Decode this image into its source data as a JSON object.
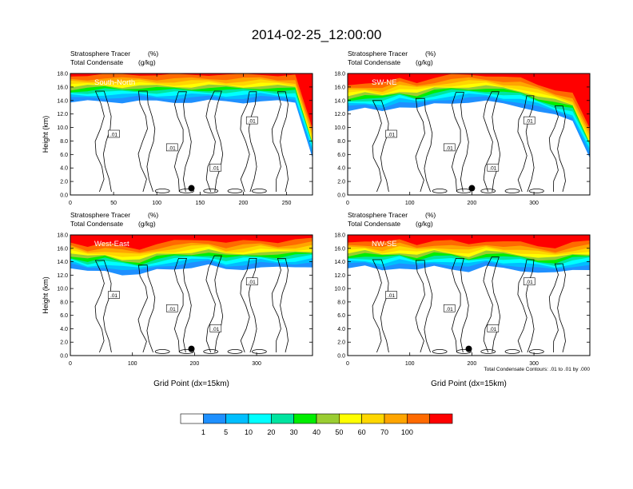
{
  "figure": {
    "title": "2014-02-25_12:00:00",
    "contour_note": "Total Condensate Contours: .01 to .01 by .000"
  },
  "colorbar": {
    "labels": [
      "1",
      "5",
      "10",
      "20",
      "30",
      "40",
      "50",
      "60",
      "70",
      "100"
    ],
    "colors": [
      "#ffffff",
      "#1e90ff",
      "#00bfff",
      "#00ffff",
      "#00e4a0",
      "#00ee00",
      "#9acd32",
      "#ffff00",
      "#ffd700",
      "#ffa500",
      "#ff6a00",
      "#ff0000"
    ]
  },
  "chart_data": [
    {
      "type": "heatmap",
      "region": "South-North",
      "left_title": "Stratosphere Tracer",
      "left_subtitle": "Total Condensate",
      "unit": "(%)",
      "unit2": "(g/kg)",
      "ylabel": "Height (km)",
      "xlabel": "",
      "xlim": [
        0,
        280
      ],
      "ylim": [
        0,
        18
      ],
      "xticks": [
        0,
        50,
        100,
        150,
        200,
        250
      ],
      "yticks": [
        "0.0",
        "2.0",
        "4.0",
        "6.0",
        "8.0",
        "10.0",
        "12.0",
        "14.0",
        "16.0",
        "18.0"
      ],
      "contour_value": ".01",
      "tropopause_km": [
        15.5,
        15.6,
        15.7,
        15.6,
        15.7,
        15.6,
        15.6,
        15.6,
        15.7,
        15.6,
        15.6,
        15.7,
        15.6,
        15.5,
        7.5
      ],
      "marker_x": 140
    },
    {
      "type": "heatmap",
      "region": "SW-NE",
      "left_title": "Stratosphere Tracer",
      "left_subtitle": "Total Condensate",
      "unit": "(%)",
      "unit2": "(g/kg)",
      "ylabel": "",
      "xlabel": "",
      "xlim": [
        0,
        390
      ],
      "ylim": [
        0,
        18
      ],
      "xticks": [
        0,
        100,
        200,
        300
      ],
      "yticks": [
        "0.0",
        "2.0",
        "4.0",
        "6.0",
        "8.0",
        "10.0",
        "12.0",
        "14.0",
        "16.0",
        "18.0"
      ],
      "contour_value": ".01",
      "tropopause_km": [
        14.2,
        14.5,
        14.3,
        15.0,
        14.6,
        15.2,
        15.5,
        15.6,
        15.6,
        15.3,
        15.0,
        14.2,
        13.5,
        12.8,
        7.5
      ],
      "marker_x": 200
    },
    {
      "type": "heatmap",
      "region": "West-East",
      "left_title": "Stratosphere Tracer",
      "left_subtitle": "Total Condensate",
      "unit": "(%)",
      "unit2": "(g/kg)",
      "ylabel": "Height (km)",
      "xlabel": "Grid Point (dx=15km)",
      "xlim": [
        0,
        390
      ],
      "ylim": [
        0,
        18
      ],
      "xticks": [
        0,
        100,
        200,
        300
      ],
      "yticks": [
        "0.0",
        "2.0",
        "4.0",
        "6.0",
        "8.0",
        "10.0",
        "12.0",
        "14.0",
        "16.0",
        "18.0"
      ],
      "contour_value": ".01",
      "tropopause_km": [
        14.8,
        14.2,
        14.5,
        14.0,
        13.8,
        14.5,
        14.8,
        15.0,
        15.2,
        14.6,
        14.8,
        15.0,
        14.8,
        15.0,
        15.2
      ],
      "marker_x": 195
    },
    {
      "type": "heatmap",
      "region": "NW-SE",
      "left_title": "Stratosphere Tracer",
      "left_subtitle": "Total Condensate",
      "unit": "(%)",
      "unit2": "(g/kg)",
      "ylabel": "",
      "xlabel": "Grid Point (dx=15km)",
      "xlim": [
        0,
        390
      ],
      "ylim": [
        0,
        18
      ],
      "xticks": [
        0,
        100,
        200,
        300
      ],
      "yticks": [
        "0.0",
        "2.0",
        "4.0",
        "6.0",
        "8.0",
        "10.0",
        "12.0",
        "14.0",
        "16.0",
        "18.0"
      ],
      "contour_value": ".01",
      "tropopause_km": [
        14.8,
        15.0,
        14.6,
        15.0,
        14.5,
        15.0,
        14.8,
        14.4,
        15.0,
        14.8,
        14.6,
        14.2,
        14.0,
        14.6,
        14.8
      ],
      "marker_x": 195
    }
  ]
}
